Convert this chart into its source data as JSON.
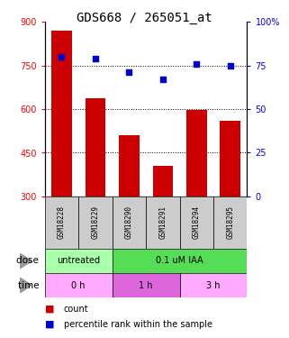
{
  "title": "GDS668 / 265051_at",
  "samples": [
    "GSM18228",
    "GSM18229",
    "GSM18290",
    "GSM18291",
    "GSM18294",
    "GSM18295"
  ],
  "counts": [
    870,
    638,
    510,
    405,
    598,
    560
  ],
  "percentiles": [
    80,
    79,
    71,
    67,
    76,
    75
  ],
  "ylim_left": [
    300,
    900
  ],
  "ylim_right": [
    0,
    100
  ],
  "yticks_left": [
    300,
    450,
    600,
    750,
    900
  ],
  "yticks_right": [
    0,
    25,
    50,
    75,
    100
  ],
  "bar_color": "#cc0000",
  "dot_color": "#0000cc",
  "dose_labels": [
    {
      "text": "untreated",
      "start": 0,
      "end": 2,
      "color": "#aaffaa"
    },
    {
      "text": "0.1 uM IAA",
      "start": 2,
      "end": 6,
      "color": "#55dd55"
    }
  ],
  "time_labels": [
    {
      "text": "0 h",
      "start": 0,
      "end": 2,
      "color": "#ffaaff"
    },
    {
      "text": "1 h",
      "start": 2,
      "end": 4,
      "color": "#dd66dd"
    },
    {
      "text": "3 h",
      "start": 4,
      "end": 6,
      "color": "#ffaaff"
    }
  ],
  "dose_arrow_label": "dose",
  "time_arrow_label": "time",
  "legend_count_label": "count",
  "legend_percentile_label": "percentile rank within the sample",
  "title_fontsize": 10,
  "tick_fontsize": 7,
  "bar_width": 0.6,
  "sample_header_color": "#cccccc"
}
